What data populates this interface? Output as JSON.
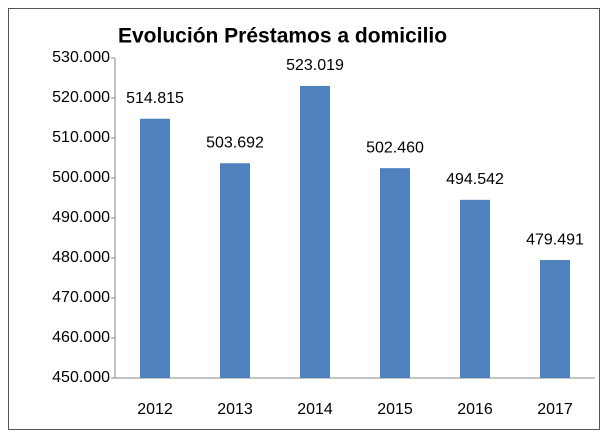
{
  "chart_data": {
    "type": "bar",
    "title": "Evolución Préstamos a domicilio",
    "categories": [
      "2012",
      "2013",
      "2014",
      "2015",
      "2016",
      "2017"
    ],
    "values": [
      514815,
      503692,
      523019,
      502460,
      494542,
      479491
    ],
    "value_labels": [
      "514.815",
      "503.692",
      "523.019",
      "502.460",
      "494.542",
      "479.491"
    ],
    "color": "#4f81bd",
    "ylim": [
      450000,
      530000
    ],
    "yticks": [
      {
        "value": 450000,
        "label": "450.000"
      },
      {
        "value": 460000,
        "label": "460.000"
      },
      {
        "value": 470000,
        "label": "470.000"
      },
      {
        "value": 480000,
        "label": "480.000"
      },
      {
        "value": 490000,
        "label": "490.000"
      },
      {
        "value": 500000,
        "label": "500.000"
      },
      {
        "value": 510000,
        "label": "510.000"
      },
      {
        "value": 520000,
        "label": "520.000"
      },
      {
        "value": 530000,
        "label": "530.000"
      }
    ],
    "grid": false
  }
}
